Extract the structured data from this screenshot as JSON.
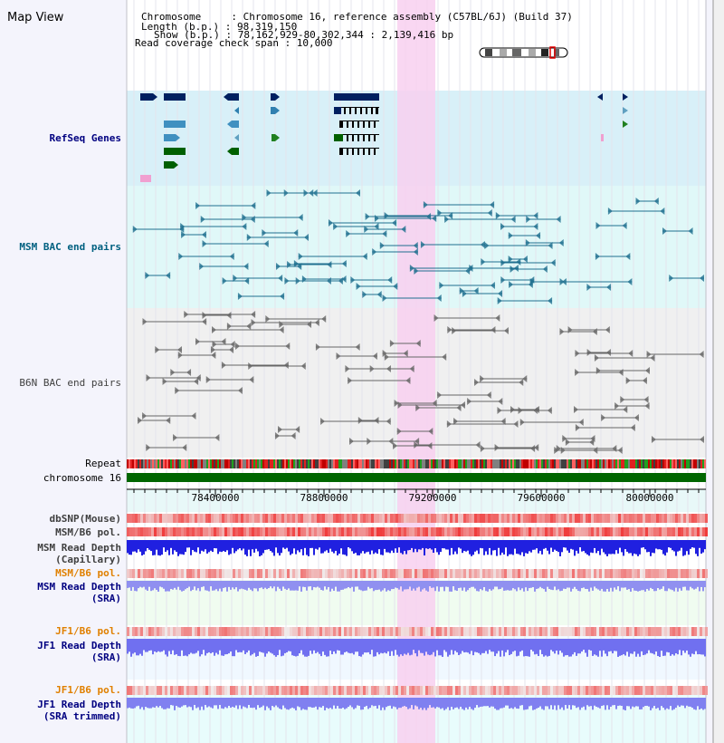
{
  "title": "Map View",
  "header": {
    "chromosome_line": "Chromosome     : Chromosome 16, reference assembly (C57BL/6J) (Build 37)",
    "length_line": "Length (b.p.) : 98,319,150",
    "show_line": "Show (b.p.) : 78,162,929-80,302,344 : 2,139,416 bp",
    "coverage_line": "Read coverage check span : 10,000"
  },
  "tracks": {
    "refseq": "RefSeq Genes",
    "msm_bac": "MSM BAC end pairs",
    "b6n_bac": "B6N BAC end pairs",
    "repeat": "Repeat",
    "chromosome": "chromosome 16",
    "dbsnp": "dbSNP(Mouse)",
    "msm_b6_pol_1": "MSM/B6 pol.",
    "msm_read_depth_cap_1": "MSM Read Depth",
    "msm_read_depth_cap_2": "(Capillary)",
    "msm_b6_pol_2": "MSM/B6 pol.",
    "msm_read_depth_sra_1": "MSM Read Depth",
    "msm_read_depth_sra_2": "(SRA)",
    "jf1_b6_pol_1": "JF1/B6 pol.",
    "jf1_read_depth_sra_1": "JF1 Read Depth",
    "jf1_read_depth_sra_2": "(SRA)",
    "jf1_b6_pol_2": "JF1/B6 pol.",
    "jf1_read_depth_trim_1": "JF1 Read Depth",
    "jf1_read_depth_trim_2": "(SRA trimmed)"
  },
  "axis": {
    "ticks": [
      "78400000",
      "78800000",
      "79200000",
      "79600000",
      "80000000"
    ]
  },
  "colors": {
    "label_blue": "#000080",
    "label_teal": "#006080",
    "label_gray": "#404040",
    "label_orange": "#e08000",
    "highlight": "#f8d0f0",
    "refseq_bg": "#d8f0f8",
    "msm_bg": "#e0f8f8",
    "b6n_bg": "#f0f0f0",
    "chrom_bar": "#006600"
  }
}
